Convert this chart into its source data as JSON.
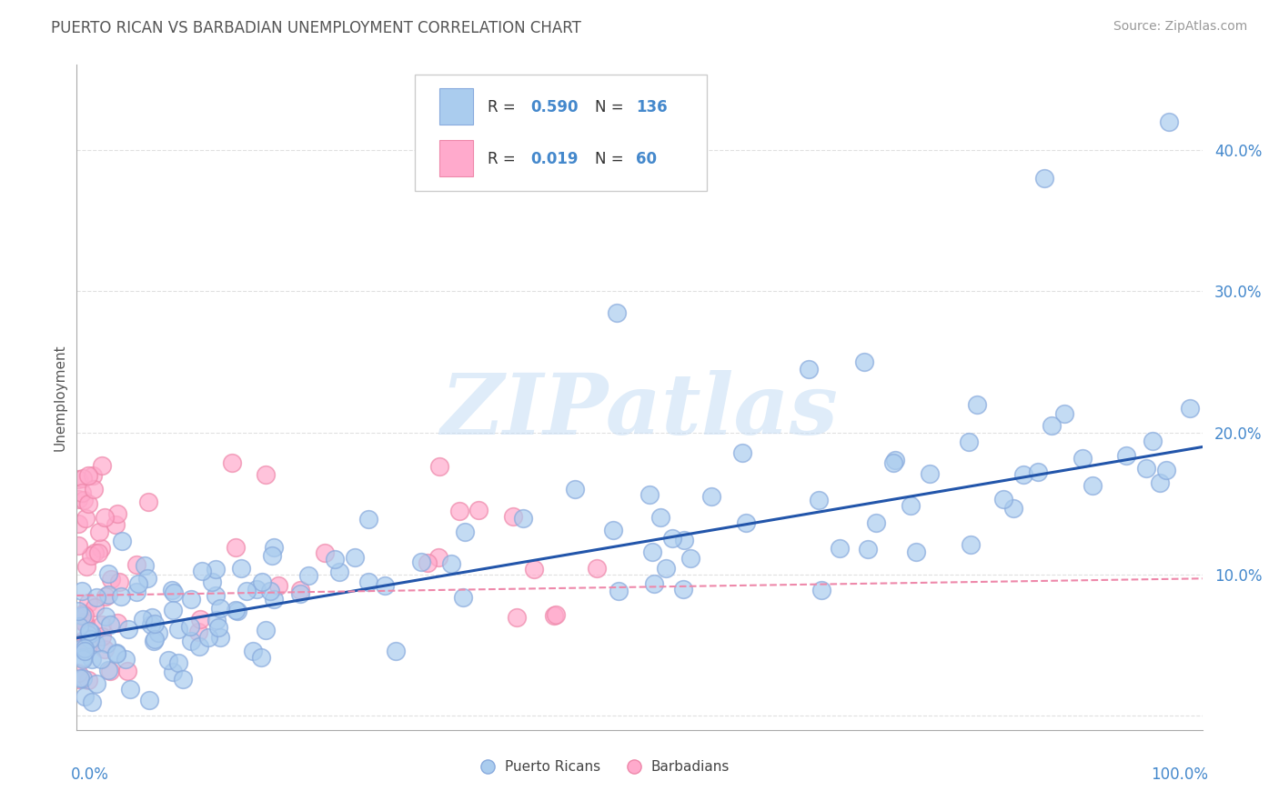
{
  "title": "PUERTO RICAN VS BARBADIAN UNEMPLOYMENT CORRELATION CHART",
  "source": "Source: ZipAtlas.com",
  "ylabel": "Unemployment",
  "watermark_text": "ZIPatlas",
  "bg_color": "#ffffff",
  "grid_color": "#cccccc",
  "title_color": "#555555",
  "source_color": "#999999",
  "axis_tick_color": "#4488cc",
  "ylabel_color": "#555555",
  "pr_color": "#aaccee",
  "pr_edge_color": "#88aadd",
  "barb_color": "#ffaacc",
  "barb_edge_color": "#ee88aa",
  "pr_line_color": "#2255aa",
  "barb_line_color": "#ee88aa",
  "legend_blue_color": "#aaccee",
  "legend_pink_color": "#ffaacc",
  "xlim": [
    0.0,
    1.0
  ],
  "ylim": [
    -0.01,
    0.46
  ],
  "ytick_positions": [
    0.0,
    0.1,
    0.2,
    0.3,
    0.4
  ],
  "ytick_labels_right": [
    "",
    "10.0%",
    "20.0%",
    "30.0%",
    "40.0%"
  ],
  "pr_R": "0.590",
  "pr_N": "136",
  "barb_R": "0.019",
  "barb_N": "60",
  "pr_line_x": [
    0.0,
    1.0
  ],
  "pr_line_y": [
    0.055,
    0.19
  ],
  "barb_line_x": [
    0.0,
    1.0
  ],
  "barb_line_y": [
    0.085,
    0.097
  ],
  "scatter_size": 200,
  "scatter_alpha": 0.7,
  "scatter_linewidth": 1.2,
  "seed_pr": 17,
  "seed_barb": 55
}
